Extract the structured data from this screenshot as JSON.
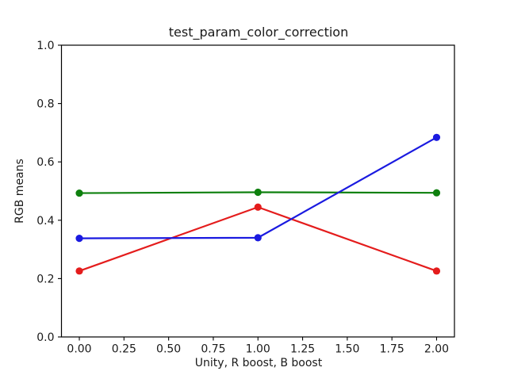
{
  "figure": {
    "background": "#ffffff",
    "axes_background": "#ffffff",
    "spine_color": "#000000"
  },
  "chart_data": {
    "type": "line",
    "title": "test_param_color_correction",
    "xlabel": "Unity, R boost, B boost",
    "ylabel": "RGB means",
    "x": [
      0.0,
      1.0,
      2.0
    ],
    "series": [
      {
        "name": "red",
        "color": "#e41c1c",
        "values": [
          0.226,
          0.445,
          0.226
        ]
      },
      {
        "name": "green",
        "color": "#0e800e",
        "values": [
          0.493,
          0.496,
          0.494
        ]
      },
      {
        "name": "blue",
        "color": "#1a1ae0",
        "values": [
          0.338,
          0.34,
          0.684
        ]
      }
    ],
    "xlim": [
      -0.1,
      2.1
    ],
    "ylim": [
      0.0,
      1.0
    ],
    "xticks": [
      0.0,
      0.25,
      0.5,
      0.75,
      1.0,
      1.25,
      1.5,
      1.75,
      2.0
    ],
    "xtick_labels": [
      "0.00",
      "0.25",
      "0.50",
      "0.75",
      "1.00",
      "1.25",
      "1.50",
      "1.75",
      "2.00"
    ],
    "yticks": [
      0.0,
      0.2,
      0.4,
      0.6,
      0.8,
      1.0
    ],
    "ytick_labels": [
      "0.0",
      "0.2",
      "0.4",
      "0.6",
      "0.8",
      "1.0"
    ],
    "grid": false,
    "legend": "none",
    "marker": "circle",
    "line_width": 2.2,
    "marker_radius": 4.6
  }
}
